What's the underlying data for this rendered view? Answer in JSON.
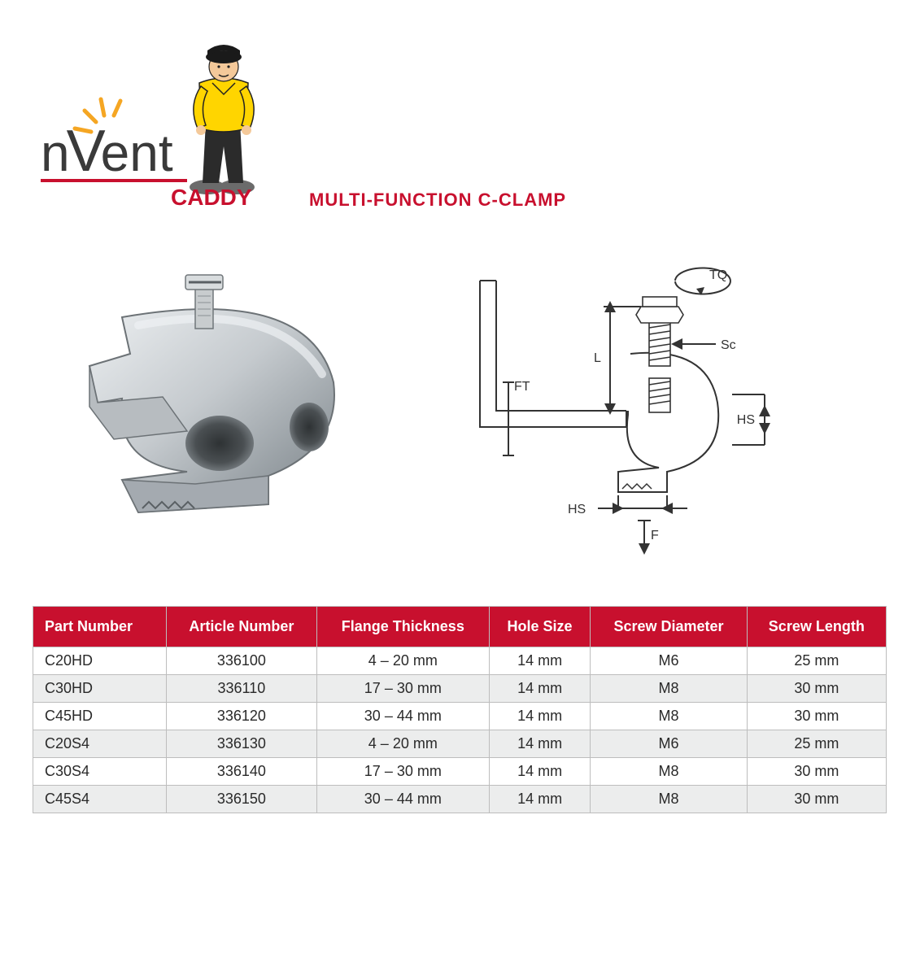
{
  "brand": {
    "name_part1": "n",
    "name_part2": "ent",
    "v_letter": "V",
    "subbrand": "CADDY",
    "accent_color": "#c8102e",
    "text_color": "#3a3a3a",
    "spark_color": "#f5a623"
  },
  "product": {
    "title": "MULTI-FUNCTION C-CLAMP",
    "title_color": "#c8102e"
  },
  "mascot": {
    "shirt_color": "#ffd500",
    "pants_color": "#2b2b2b",
    "skin_color": "#f4c99a",
    "shoe_color": "#6b6b6b",
    "cap_color": "#1a1a1a"
  },
  "diagram": {
    "labels": {
      "tq": "TQ",
      "sc": "Sc",
      "l": "L",
      "ft": "FT",
      "hs": "HS",
      "f": "F"
    },
    "stroke": "#333333",
    "metal_fill": "#e8e8e8"
  },
  "photo": {
    "metal_light": "#d9dcde",
    "metal_mid": "#b7bcc0",
    "metal_dark": "#8a9094",
    "metal_shadow": "#6c7276"
  },
  "table": {
    "header_bg": "#c8102e",
    "header_fg": "#ffffff",
    "row_alt_bg": "#eceded",
    "border_color": "#bdbdbd",
    "columns": [
      "Part Number",
      "Article Number",
      "Flange Thickness",
      "Hole Size",
      "Screw Diameter",
      "Screw Length"
    ],
    "rows": [
      [
        "C20HD",
        "336100",
        "4 – 20 mm",
        "14 mm",
        "M6",
        "25 mm"
      ],
      [
        "C30HD",
        "336110",
        "17 – 30 mm",
        "14 mm",
        "M8",
        "30 mm"
      ],
      [
        "C45HD",
        "336120",
        "30 – 44 mm",
        "14 mm",
        "M8",
        "30 mm"
      ],
      [
        "C20S4",
        "336130",
        "4 – 20 mm",
        "14 mm",
        "M6",
        "25 mm"
      ],
      [
        "C30S4",
        "336140",
        "17 – 30 mm",
        "14 mm",
        "M8",
        "30 mm"
      ],
      [
        "C45S4",
        "336150",
        "30 – 44 mm",
        "14 mm",
        "M8",
        "30 mm"
      ]
    ]
  }
}
